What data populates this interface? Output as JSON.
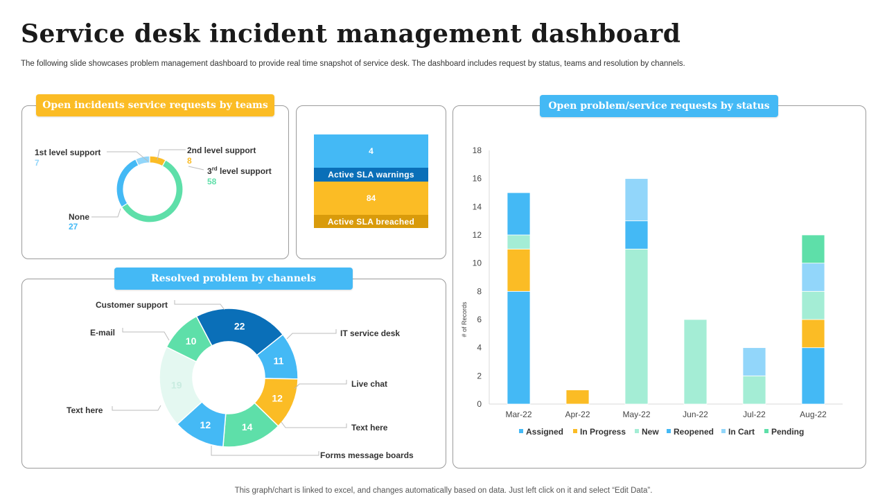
{
  "header": {
    "title": "Service desk incident management dashboard",
    "subtitle": "The following slide showcases problem management dashboard to provide real time snapshot of service desk. The dashboard includes request by status, teams and resolution by channels."
  },
  "footer": {
    "note": "This graph/chart is linked to excel,  and changes automatically based on data. Just left click on it and select “Edit Data”."
  },
  "panels": {
    "teams_title": "Open incidents service requests by teams",
    "channels_title": "Resolved problem by channels",
    "status_title": "Open problem/service requests by status"
  },
  "sla": {
    "warnings_value": "4",
    "warnings_label": "Active SLA warnings",
    "breached_value": "84",
    "breached_label": "Active SLA breached"
  },
  "colors": {
    "yellow": "#FBBC25",
    "blue": "#44B9F5",
    "dark_blue": "#0A6FB8",
    "green": "#5EDFA9",
    "light_blue": "#92D6FA",
    "mint": "#A4EDD5"
  },
  "chart_data": [
    {
      "type": "pie",
      "title": "Open incidents service requests by teams",
      "categories": [
        "1st level support",
        "2nd level support",
        "3rd level support",
        "None"
      ],
      "values": [
        7,
        8,
        58,
        27
      ],
      "colors": [
        "#92D6FA",
        "#FBBC25",
        "#5EDFA9",
        "#44B9F5"
      ],
      "label_parts": {
        "third_prefix": "3",
        "third_sup": "rd",
        "third_suffix": " level support"
      }
    },
    {
      "type": "pie",
      "title": "Resolved problem by channels",
      "categories": [
        "Customer support",
        "IT service desk",
        "Live chat",
        "Text here",
        "Forms message boards",
        "Text here",
        "E-mail"
      ],
      "values": [
        22,
        11,
        12,
        14,
        12,
        19,
        10
      ],
      "colors": [
        "#0A6FB8",
        "#44B9F5",
        "#FBBC25",
        "#5EDFA9",
        "#44B9F5",
        "#E4F8F1",
        "#5EDFA9"
      ]
    },
    {
      "type": "bar",
      "stacked": true,
      "title": "Open problem/service requests by status",
      "categories": [
        "Mar-22",
        "Apr-22",
        "May-22",
        "Jun-22",
        "Jul-22",
        "Aug-22"
      ],
      "ylabel": "# of Records",
      "ylim": [
        0,
        18
      ],
      "yticks": [
        0,
        2,
        4,
        6,
        8,
        10,
        12,
        14,
        16,
        18
      ],
      "legend_position": "bottom",
      "series": [
        {
          "name": "Assigned",
          "color": "#44B9F5",
          "values": [
            8,
            0,
            0,
            0,
            0,
            4
          ]
        },
        {
          "name": "In Progress",
          "color": "#FBBC25",
          "values": [
            3,
            1,
            0,
            0,
            0,
            2
          ]
        },
        {
          "name": "New",
          "color": "#A4EDD5",
          "values": [
            1,
            0,
            11,
            6,
            2,
            2
          ]
        },
        {
          "name": "Reopened",
          "color": "#44B9F5",
          "values": [
            3,
            0,
            2,
            0,
            0,
            0
          ]
        },
        {
          "name": "In Cart",
          "color": "#92D6FA",
          "values": [
            0,
            0,
            3,
            0,
            2,
            2
          ]
        },
        {
          "name": "Pending",
          "color": "#5EDFA9",
          "values": [
            0,
            0,
            0,
            0,
            0,
            2
          ]
        }
      ]
    }
  ]
}
